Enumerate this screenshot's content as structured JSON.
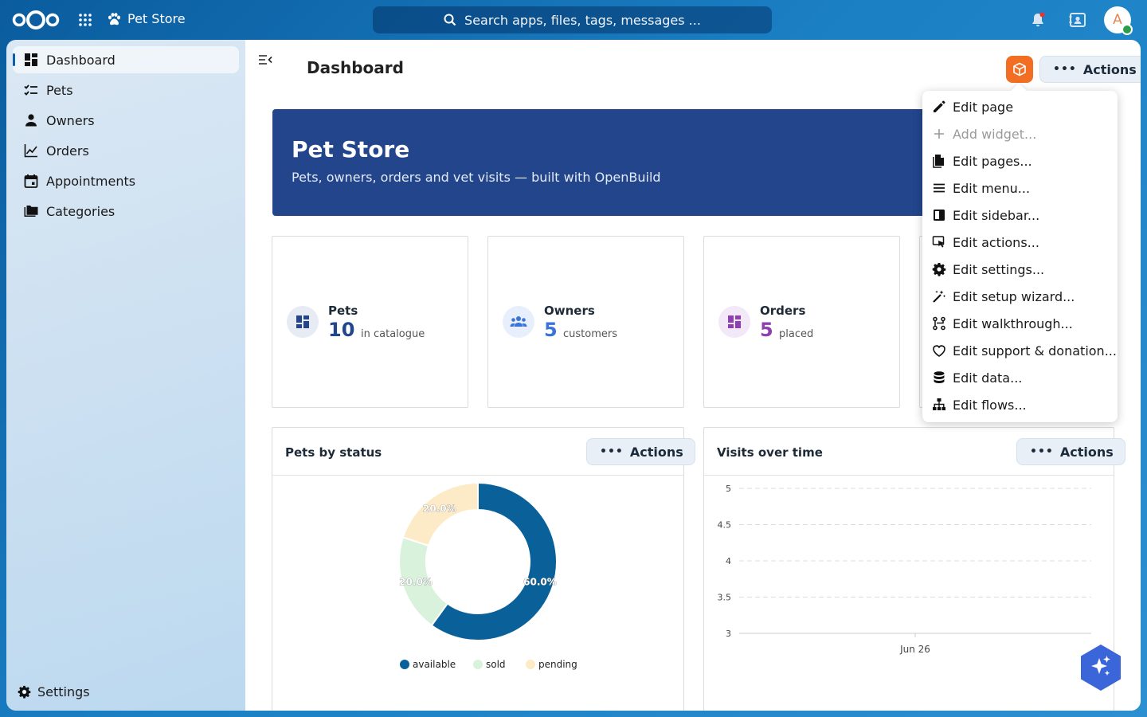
{
  "app": {
    "name": "Pet Store"
  },
  "search": {
    "placeholder": "Search apps, files, tags, messages ..."
  },
  "user": {
    "initial": "A"
  },
  "sidebar": {
    "items": [
      {
        "label": "Dashboard",
        "icon": "dashboard-icon"
      },
      {
        "label": "Pets",
        "icon": "checklist-icon"
      },
      {
        "label": "Owners",
        "icon": "person-icon"
      },
      {
        "label": "Orders",
        "icon": "chart-line-icon"
      },
      {
        "label": "Appointments",
        "icon": "calendar-icon"
      },
      {
        "label": "Categories",
        "icon": "folder-icon"
      }
    ],
    "settings_label": "Settings"
  },
  "page": {
    "title": "Dashboard",
    "actions_label": "Actions"
  },
  "banner": {
    "title": "Pet Store",
    "subtitle": "Pets, owners, orders and vet visits — built with OpenBuild"
  },
  "stats": [
    {
      "label": "Pets",
      "value": "10",
      "sub": "in catalogue",
      "color": "#22458c"
    },
    {
      "label": "Owners",
      "value": "5",
      "sub": "customers",
      "color": "#3b73d8"
    },
    {
      "label": "Orders",
      "value": "5",
      "sub": "placed",
      "color": "#8e3fb0"
    }
  ],
  "panels": {
    "pets_by_status": {
      "title": "Pets by status",
      "actions_label": "Actions"
    },
    "visits_over_time": {
      "title": "Visits over time",
      "actions_label": "Actions"
    }
  },
  "menu": {
    "items": [
      {
        "label": "Edit page",
        "icon": "pencil-icon",
        "disabled": false
      },
      {
        "label": "Add widget...",
        "icon": "plus-icon",
        "disabled": true
      },
      {
        "label": "Edit pages...",
        "icon": "pages-icon",
        "disabled": false
      },
      {
        "label": "Edit menu...",
        "icon": "menu-lines-icon",
        "disabled": false
      },
      {
        "label": "Edit sidebar...",
        "icon": "sidebar-icon",
        "disabled": false
      },
      {
        "label": "Edit actions...",
        "icon": "cursor-click-icon",
        "disabled": false
      },
      {
        "label": "Edit settings...",
        "icon": "gear-icon",
        "disabled": false
      },
      {
        "label": "Edit setup wizard...",
        "icon": "magic-wand-icon",
        "disabled": false
      },
      {
        "label": "Edit walkthrough...",
        "icon": "route-icon",
        "disabled": false
      },
      {
        "label": "Edit support & donation...",
        "icon": "heart-icon",
        "disabled": false
      },
      {
        "label": "Edit data...",
        "icon": "database-icon",
        "disabled": false
      },
      {
        "label": "Edit flows...",
        "icon": "sitemap-icon",
        "disabled": false
      }
    ]
  },
  "chart_data": [
    {
      "type": "pie",
      "categories": [
        "available",
        "sold",
        "pending"
      ],
      "values": [
        60.0,
        20.0,
        20.0
      ],
      "labels": [
        "60.0%",
        "20.0%",
        "20.0%"
      ],
      "colors": [
        "#0a6199",
        "#d9f2dc",
        "#fdebc7"
      ],
      "legend": "bottom"
    },
    {
      "type": "line",
      "x_ticks": [
        "Jun 26"
      ],
      "y_ticks": [
        "5",
        "4.5",
        "4",
        "3.5",
        "3"
      ],
      "ylim": [
        3,
        5
      ],
      "series": [],
      "grid": true
    }
  ]
}
